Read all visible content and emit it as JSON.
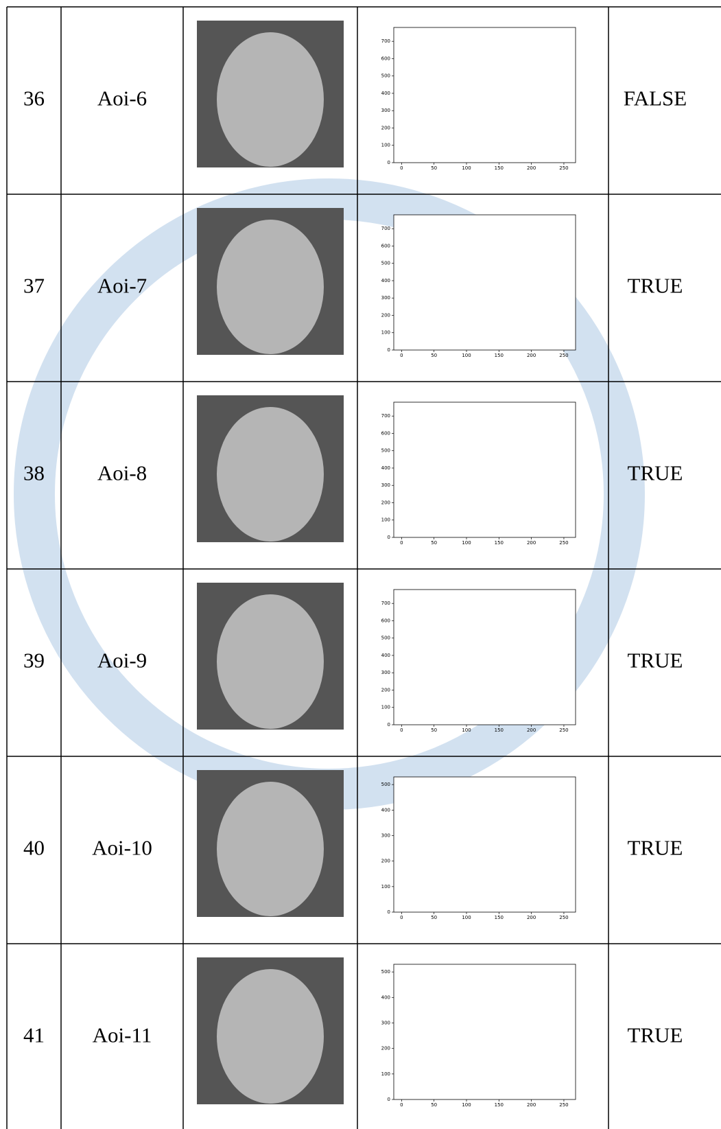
{
  "table": {
    "rows": [
      {
        "no": "36",
        "name": "Aoi-6",
        "result": "FALSE",
        "result_color": "#ff0000",
        "histogram": {
          "xlim": [
            -12,
            268
          ],
          "ylim": [
            0,
            780
          ],
          "xticks": [
            0,
            50,
            100,
            150,
            200,
            250
          ],
          "yticks": [
            0,
            100,
            200,
            300,
            400,
            500,
            600,
            700
          ]
        }
      },
      {
        "no": "37",
        "name": "Aoi-7",
        "result": "TRUE",
        "result_color": "#000000",
        "histogram": {
          "xlim": [
            -12,
            268
          ],
          "ylim": [
            0,
            780
          ],
          "xticks": [
            0,
            50,
            100,
            150,
            200,
            250
          ],
          "yticks": [
            0,
            100,
            200,
            300,
            400,
            500,
            600,
            700
          ]
        }
      },
      {
        "no": "38",
        "name": "Aoi-8",
        "result": "TRUE",
        "result_color": "#000000",
        "histogram": {
          "xlim": [
            -12,
            268
          ],
          "ylim": [
            0,
            780
          ],
          "xticks": [
            0,
            50,
            100,
            150,
            200,
            250
          ],
          "yticks": [
            0,
            100,
            200,
            300,
            400,
            500,
            600,
            700
          ]
        }
      },
      {
        "no": "39",
        "name": "Aoi-9",
        "result": "TRUE",
        "result_color": "#000000",
        "histogram": {
          "xlim": [
            -12,
            268
          ],
          "ylim": [
            0,
            780
          ],
          "xticks": [
            0,
            50,
            100,
            150,
            200,
            250
          ],
          "yticks": [
            0,
            100,
            200,
            300,
            400,
            500,
            600,
            700
          ]
        }
      },
      {
        "no": "40",
        "name": "Aoi-10",
        "result": "TRUE",
        "result_color": "#000000",
        "histogram": {
          "xlim": [
            -12,
            268
          ],
          "ylim": [
            0,
            530
          ],
          "xticks": [
            0,
            50,
            100,
            150,
            200,
            250
          ],
          "yticks": [
            0,
            100,
            200,
            300,
            400,
            500
          ]
        }
      },
      {
        "no": "41",
        "name": "Aoi-11",
        "result": "TRUE",
        "result_color": "#000000",
        "histogram": {
          "xlim": [
            -12,
            268
          ],
          "ylim": [
            0,
            530
          ],
          "xticks": [
            0,
            50,
            100,
            150,
            200,
            250
          ],
          "yticks": [
            0,
            100,
            200,
            300,
            400,
            500
          ]
        }
      }
    ]
  }
}
